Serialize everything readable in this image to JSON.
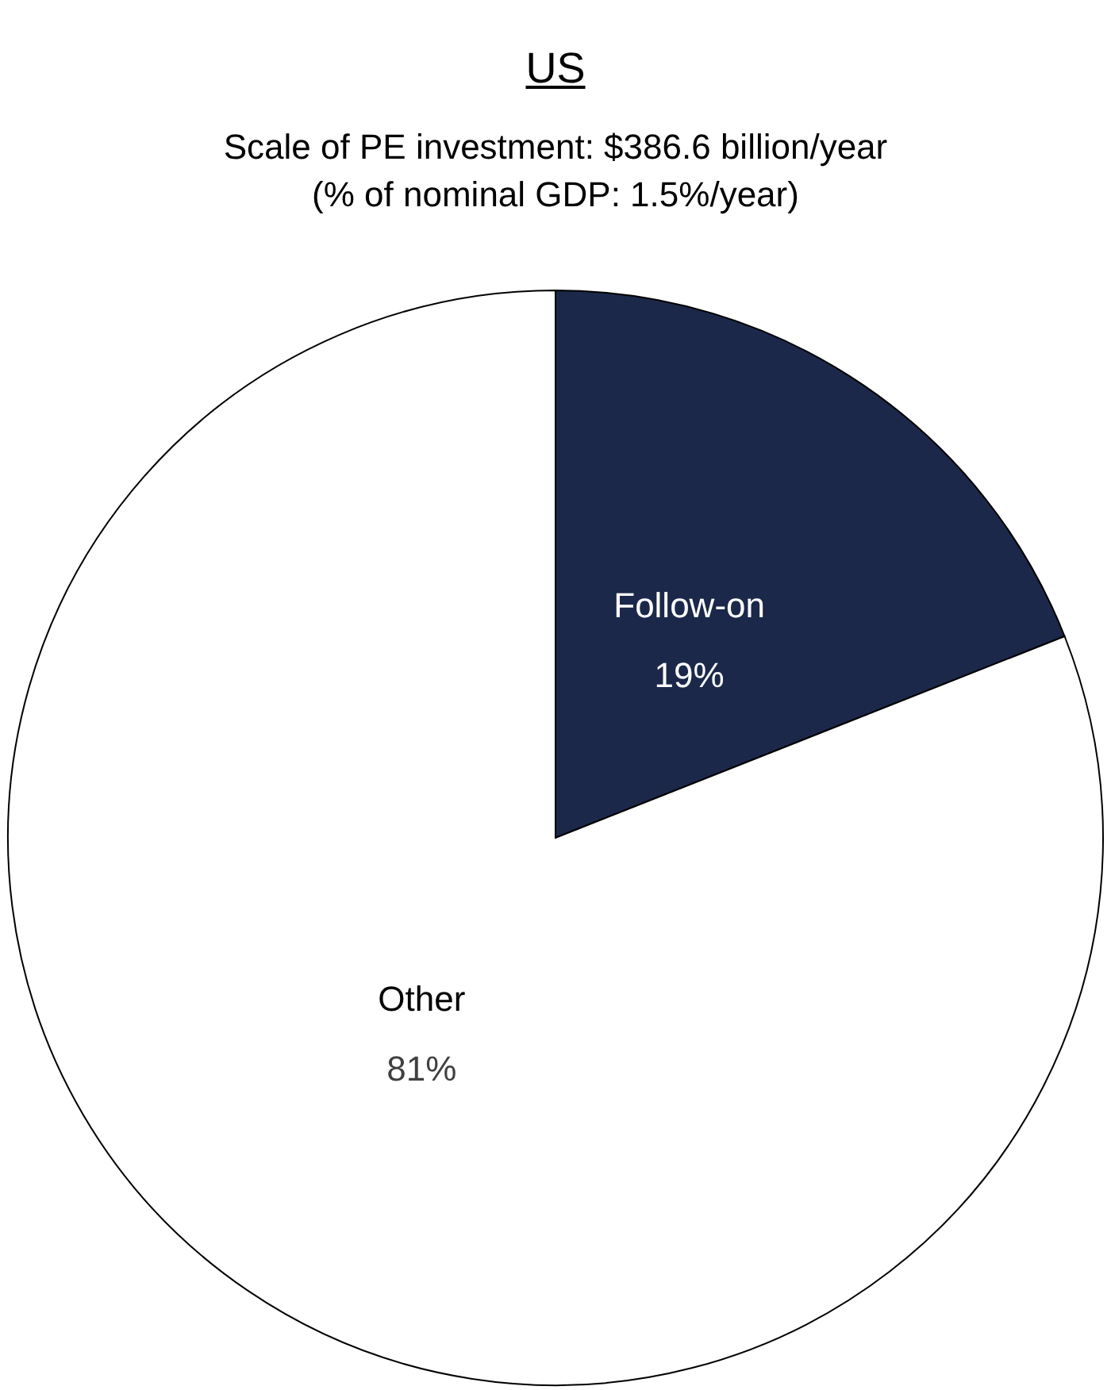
{
  "chart_data": {
    "type": "pie",
    "title": "US",
    "subtitle": "Scale of PE investment: $386.6 billion/year\n(% of nominal GDP: 1.5%/year)",
    "categories": [
      "Follow-on",
      "Other"
    ],
    "values": [
      19,
      81
    ],
    "colors": [
      "#1b284a",
      "#ffffff"
    ],
    "value_labels": [
      "19%",
      "81%"
    ]
  }
}
